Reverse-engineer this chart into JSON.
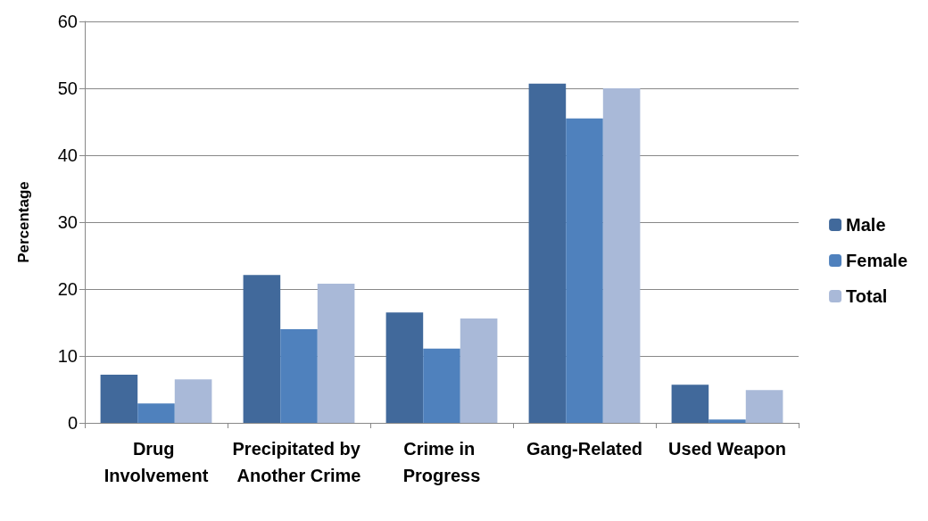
{
  "chart_data": {
    "type": "bar",
    "ylabel": "Percentage",
    "categories": [
      "Drug Involvement",
      "Precipitated by Another Crime",
      "Crime in Progress",
      "Gang-Related",
      "Used Weapon"
    ],
    "series": [
      {
        "name": "Male",
        "color": "#41699b",
        "values": [
          7.2,
          22.1,
          16.5,
          50.7,
          5.7
        ]
      },
      {
        "name": "Female",
        "color": "#4f81bd",
        "values": [
          2.9,
          14.0,
          11.1,
          45.5,
          0.5
        ]
      },
      {
        "name": "Total",
        "color": "#a9b9d8",
        "values": [
          6.5,
          20.8,
          15.6,
          50.0,
          4.9
        ]
      }
    ],
    "ylim": [
      0,
      60
    ],
    "yticks": [
      0,
      10,
      20,
      30,
      40,
      50,
      60
    ],
    "grid": "y",
    "legend": "right"
  }
}
